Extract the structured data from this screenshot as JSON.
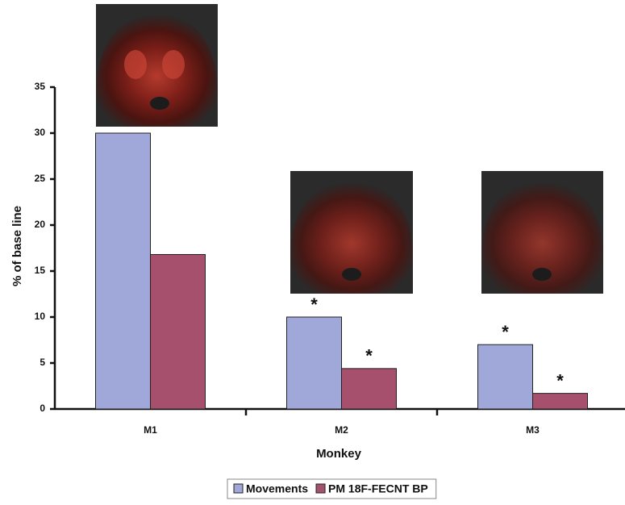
{
  "chart_data": {
    "type": "bar",
    "x_label": "Monkey",
    "y_label": "% of base line",
    "categories": [
      "M1",
      "M2",
      "M3"
    ],
    "series": [
      {
        "name": "Movements",
        "color": "#9fa8d8",
        "values": [
          30,
          10,
          7
        ],
        "annotations": [
          null,
          "*",
          "*"
        ]
      },
      {
        "name": "PM 18F-FECNT BP",
        "color": "#a6506e",
        "values": [
          16.8,
          4.4,
          1.7
        ],
        "annotations": [
          null,
          "*",
          "*"
        ]
      }
    ],
    "ylim": [
      0,
      35
    ],
    "yticks": [
      0,
      5,
      10,
      15,
      20,
      25,
      30,
      35
    ],
    "legend": "bottom"
  }
}
